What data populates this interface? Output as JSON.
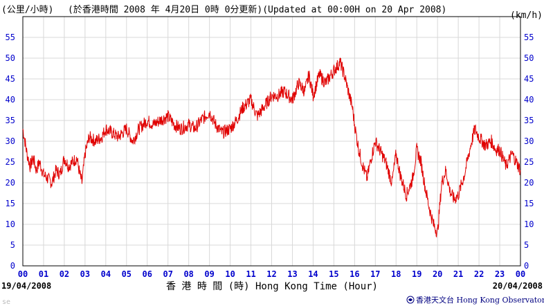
{
  "header": {
    "unit_left": "(公里/小時)",
    "update_text": "(於香港時間 2008 年 4月20日 0時 0分更新)(Updated at 00:00H on 20 Apr 2008)",
    "unit_right": "(km/h)"
  },
  "footer": {
    "date_start": "19/04/2008",
    "date_end": "20/04/2008",
    "xlabel": "香 港 時 間 (時) Hong Kong Time (Hour)",
    "mark": "se",
    "credit": "香港天文台 Hong Kong Observatory",
    "credit_icon": "hko-logo-icon"
  },
  "colors": {
    "axis_tick_labels": "#0000cc",
    "series_line": "#e00000",
    "grid": "#d8d8d8",
    "text": "#000000"
  },
  "chart_data": {
    "type": "line",
    "title": "",
    "xlabel": "香 港 時 間 (時) Hong Kong Time (Hour)",
    "ylabel": "(公里/小時)",
    "ylabel_right": "(km/h)",
    "xlim": [
      0,
      24
    ],
    "ylim": [
      0,
      60
    ],
    "grid": true,
    "x_ticks": [
      "00",
      "01",
      "02",
      "03",
      "04",
      "05",
      "06",
      "07",
      "08",
      "09",
      "10",
      "11",
      "12",
      "13",
      "14",
      "15",
      "16",
      "17",
      "18",
      "19",
      "20",
      "21",
      "22",
      "23",
      "00"
    ],
    "y_ticks": [
      0,
      5,
      10,
      15,
      20,
      25,
      30,
      35,
      40,
      45,
      50,
      55
    ],
    "series": [
      {
        "x": [
          0,
          0.1,
          0.2,
          0.35,
          0.5,
          0.65,
          0.8,
          1.0,
          1.2,
          1.4,
          1.6,
          1.8,
          2.0,
          2.2,
          2.4,
          2.6,
          2.75,
          2.85,
          3.0,
          3.2,
          3.5,
          3.8,
          4.0,
          4.3,
          4.6,
          5.0,
          5.3,
          5.6,
          6.0,
          6.3,
          6.6,
          7.0,
          7.3,
          7.6,
          8.0,
          8.3,
          8.6,
          9.0,
          9.3,
          9.6,
          10.0,
          10.3,
          10.6,
          11.0,
          11.3,
          11.6,
          12.0,
          12.3,
          12.6,
          13.0,
          13.3,
          13.6,
          13.8,
          14.0,
          14.3,
          14.6,
          15.0,
          15.3,
          15.5,
          15.7,
          15.9,
          16.0,
          16.2,
          16.4,
          16.6,
          16.8,
          17.0,
          17.2,
          17.5,
          17.8,
          18.0,
          18.2,
          18.5,
          18.8,
          19.0,
          19.2,
          19.4,
          19.6,
          19.8,
          20.0,
          20.2,
          20.4,
          20.6,
          20.8,
          21.0,
          21.3,
          21.6,
          21.8,
          22.0,
          22.3,
          22.6,
          22.8,
          23.0,
          23.3,
          23.6,
          23.8,
          24.0
        ],
        "values": [
          33,
          30,
          27,
          24,
          26,
          23,
          25,
          22,
          21,
          20,
          23,
          22,
          26,
          24,
          25,
          26,
          22,
          20,
          27,
          31,
          30,
          31,
          33,
          32,
          31,
          33,
          30,
          33,
          35,
          34,
          35,
          36,
          34,
          33,
          34,
          33,
          35,
          37,
          34,
          32,
          33,
          35,
          38,
          40,
          36,
          38,
          41,
          41,
          42,
          40,
          44,
          42,
          46,
          41,
          46,
          44,
          47,
          49,
          46,
          42,
          38,
          34,
          28,
          24,
          21,
          26,
          30,
          28,
          25,
          20,
          27,
          22,
          17,
          21,
          28,
          25,
          19,
          14,
          10,
          8,
          20,
          23,
          18,
          16,
          17,
          22,
          29,
          33,
          31,
          29,
          30,
          28,
          28,
          24,
          27,
          25,
          23
        ]
      }
    ]
  }
}
